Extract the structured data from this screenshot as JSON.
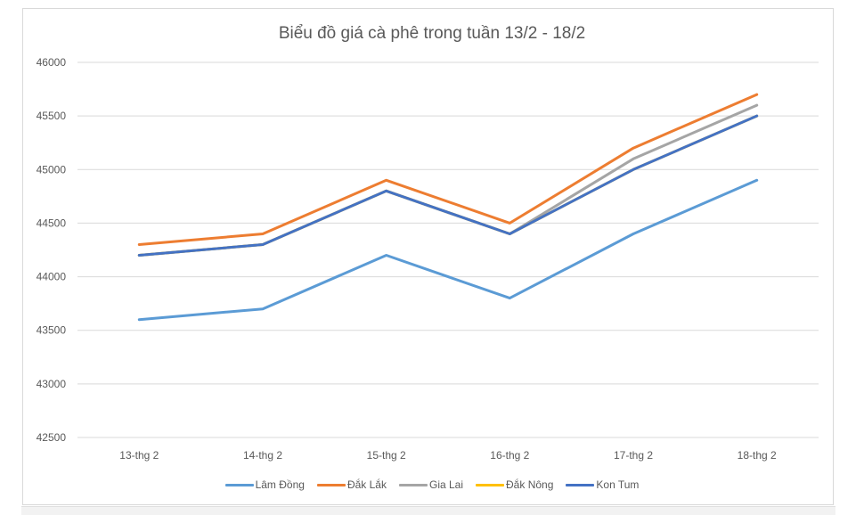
{
  "chart_data": {
    "type": "line",
    "title": "Biểu đồ giá cà phê trong tuần 13/2 - 18/2",
    "xlabel": "",
    "ylabel": "",
    "categories": [
      "13-thg 2",
      "14-thg 2",
      "15-thg 2",
      "16-thg 2",
      "17-thg 2",
      "18-thg 2"
    ],
    "yticks": [
      "42500",
      "43000",
      "43500",
      "44000",
      "44500",
      "45000",
      "45500",
      "46000"
    ],
    "ylim": [
      42500,
      46000
    ],
    "grid": true,
    "legend_position": "bottom",
    "series": [
      {
        "name": "Lâm Đồng",
        "color": "#5B9BD5",
        "values": [
          43600,
          43700,
          44200,
          43800,
          44400,
          44900
        ]
      },
      {
        "name": "Đắk Lắk",
        "color": "#ED7D31",
        "values": [
          44300,
          44400,
          44900,
          44500,
          45200,
          45700
        ]
      },
      {
        "name": "Gia Lai",
        "color": "#A5A5A5",
        "values": [
          44200,
          44300,
          44800,
          44400,
          45100,
          45600
        ]
      },
      {
        "name": "Đắk Nông",
        "color": "#FFC000",
        "values": [
          44200,
          44300,
          44800,
          44400,
          45000,
          45500
        ]
      },
      {
        "name": "Kon Tum",
        "color": "#4472C4",
        "values": [
          44200,
          44300,
          44800,
          44400,
          45000,
          45500
        ]
      }
    ]
  }
}
